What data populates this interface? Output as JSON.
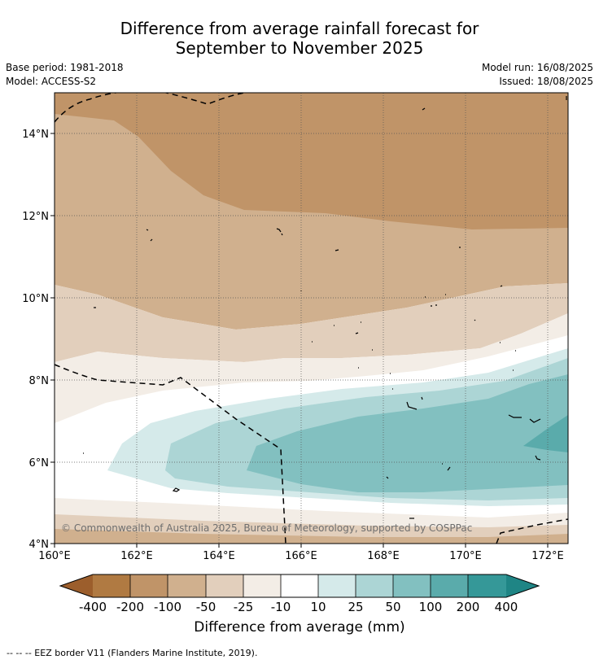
{
  "title_line1": "Difference from average rainfall forecast for",
  "title_line2": "September to November 2025",
  "base_period": "Base period: 1981-2018",
  "model": "Model: ACCESS-S2",
  "model_run": "Model run: 16/08/2025",
  "issued": "Issued: 18/08/2025",
  "copyright": "© Commonwealth of Australia 2025, Bureau of Meteorology, supported by COSPPac",
  "footer_note": "-- -- -- EEZ border V11 (Flanders Marine Institute, 2019).",
  "map": {
    "lon_range": [
      160,
      172.5
    ],
    "lat_range": [
      4,
      15
    ],
    "lon_ticks": [
      "160°E",
      "162°E",
      "164°E",
      "166°E",
      "168°E",
      "170°E",
      "172°E"
    ],
    "lat_ticks": [
      "4°N",
      "6°N",
      "8°N",
      "10°N",
      "12°N",
      "14°N"
    ],
    "gridlines": true
  },
  "colorbar": {
    "title": "Difference from average (mm)",
    "labels": [
      "-400",
      "-200",
      "-100",
      "-50",
      "-25",
      "-10",
      "10",
      "25",
      "50",
      "100",
      "200",
      "400"
    ],
    "colors": [
      "#9c5e2c",
      "#b07a42",
      "#c09468",
      "#d0b08e",
      "#e2cfbc",
      "#f3ede6",
      "#ffffff",
      "#d5eaea",
      "#acd5d5",
      "#82c0c0",
      "#5aabab",
      "#359898",
      "#1f8585"
    ]
  }
}
